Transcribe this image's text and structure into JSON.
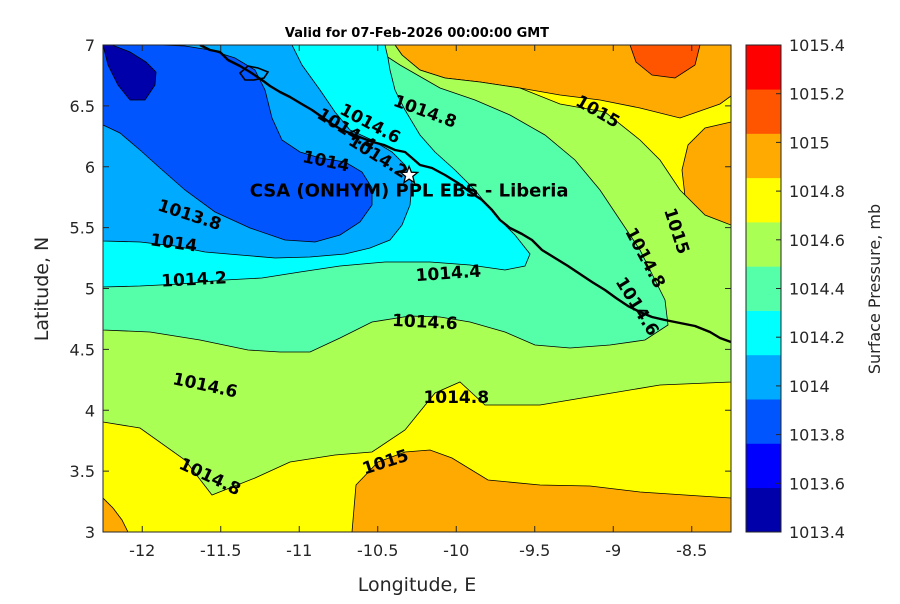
{
  "chart_data": {
    "type": "heatmap",
    "title": "Valid for 07-Feb-2026 00:00:00 GMT",
    "xlabel": "Longitude, E",
    "ylabel": "Latitude, N",
    "xlim": [
      -12.25,
      -8.25
    ],
    "ylim": [
      3,
      7
    ],
    "x_ticks": [
      -12,
      -11.5,
      -11,
      -10.5,
      -10,
      -9.5,
      -9,
      -8.5
    ],
    "y_ticks": [
      3,
      3.5,
      4,
      4.5,
      5,
      5.5,
      6,
      6.5,
      7
    ],
    "station": {
      "label": "CSA (ONHYM) PPL EBS  - Liberia",
      "lon": -10.3,
      "lat": 5.93
    },
    "colorbar": {
      "label": "Surface Pressure, mb",
      "levels": [
        1013.4,
        1013.6,
        1013.8,
        1014,
        1014.2,
        1014.4,
        1014.6,
        1014.8,
        1015,
        1015.2,
        1015.4
      ],
      "tick_labels": [
        "1013.4",
        "1013.6",
        "1013.8",
        "1014",
        "1014.2",
        "1014.4",
        "1014.6",
        "1014.8",
        "1015",
        "1015.2",
        "1015.4"
      ],
      "colors": [
        "#0000aa",
        "#0000ff",
        "#0055ff",
        "#00aaff",
        "#00ffff",
        "#55ffaa",
        "#aaff55",
        "#ffff00",
        "#ffaa00",
        "#ff5500",
        "#ff0000"
      ]
    },
    "contour_labels": [
      {
        "text": "1014.8",
        "lon": -10.2,
        "lat": 6.45,
        "rotate": 20
      },
      {
        "text": "1014.6",
        "lon": -10.55,
        "lat": 6.35,
        "rotate": 28
      },
      {
        "text": "1014.4",
        "lon": -10.7,
        "lat": 6.3,
        "rotate": 32
      },
      {
        "text": "1014.2",
        "lon": -10.5,
        "lat": 6.08,
        "rotate": 32
      },
      {
        "text": "1015",
        "lon": -9.1,
        "lat": 6.45,
        "rotate": 30
      },
      {
        "text": "1014",
        "lon": -10.83,
        "lat": 6.04,
        "rotate": 12
      },
      {
        "text": "1013.8",
        "lon": -11.7,
        "lat": 5.6,
        "rotate": 18
      },
      {
        "text": "1014",
        "lon": -11.8,
        "lat": 5.37,
        "rotate": 8
      },
      {
        "text": "1014.2",
        "lon": -11.67,
        "lat": 5.07,
        "rotate": -3
      },
      {
        "text": "1014.4",
        "lon": -10.05,
        "lat": 5.12,
        "rotate": -4
      },
      {
        "text": "1015",
        "lon": -8.6,
        "lat": 5.47,
        "rotate": 72
      },
      {
        "text": "1014.8",
        "lon": -8.8,
        "lat": 5.25,
        "rotate": 62
      },
      {
        "text": "1014.6",
        "lon": -8.85,
        "lat": 4.85,
        "rotate": 58
      },
      {
        "text": "1014.6",
        "lon": -10.2,
        "lat": 4.72,
        "rotate": 3
      },
      {
        "text": "1014.6",
        "lon": -11.6,
        "lat": 4.2,
        "rotate": 12
      },
      {
        "text": "1014.8",
        "lon": -10.0,
        "lat": 4.1,
        "rotate": 0
      },
      {
        "text": "1014.8",
        "lon": -11.57,
        "lat": 3.45,
        "rotate": 25
      },
      {
        "text": "1015",
        "lon": -10.45,
        "lat": 3.57,
        "rotate": -18
      }
    ]
  }
}
